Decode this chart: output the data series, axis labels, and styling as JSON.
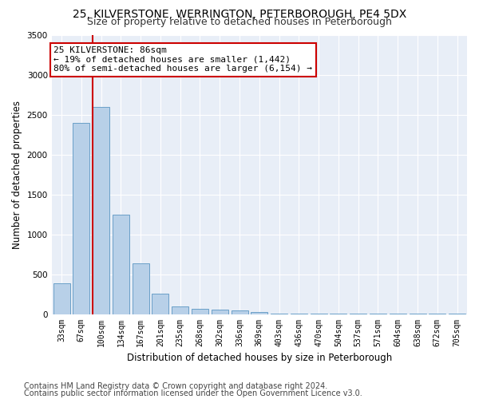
{
  "title": "25, KILVERSTONE, WERRINGTON, PETERBOROUGH, PE4 5DX",
  "subtitle": "Size of property relative to detached houses in Peterborough",
  "xlabel": "Distribution of detached houses by size in Peterborough",
  "ylabel": "Number of detached properties",
  "categories": [
    "33sqm",
    "67sqm",
    "100sqm",
    "134sqm",
    "167sqm",
    "201sqm",
    "235sqm",
    "268sqm",
    "302sqm",
    "336sqm",
    "369sqm",
    "403sqm",
    "436sqm",
    "470sqm",
    "504sqm",
    "537sqm",
    "571sqm",
    "604sqm",
    "638sqm",
    "672sqm",
    "705sqm"
  ],
  "values": [
    390,
    2400,
    2600,
    1250,
    640,
    260,
    100,
    70,
    60,
    50,
    30,
    8,
    6,
    5,
    4,
    3,
    3,
    2,
    2,
    2,
    2
  ],
  "bar_color": "#b8d0e8",
  "bar_edgecolor": "#6aa0c8",
  "background_color": "#e8eef7",
  "grid_color": "#ffffff",
  "annotation_text": "25 KILVERSTONE: 86sqm\n← 19% of detached houses are smaller (1,442)\n80% of semi-detached houses are larger (6,154) →",
  "annotation_box_color": "#ffffff",
  "annotation_box_edgecolor": "#cc0000",
  "vline_color": "#cc0000",
  "vline_x": 1.57,
  "ylim": [
    0,
    3500
  ],
  "yticks": [
    0,
    500,
    1000,
    1500,
    2000,
    2500,
    3000,
    3500
  ],
  "footer1": "Contains HM Land Registry data © Crown copyright and database right 2024.",
  "footer2": "Contains public sector information licensed under the Open Government Licence v3.0.",
  "title_fontsize": 10,
  "subtitle_fontsize": 9,
  "tick_fontsize": 7,
  "ylabel_fontsize": 8.5,
  "xlabel_fontsize": 8.5,
  "footer_fontsize": 7,
  "annotation_fontsize": 8
}
